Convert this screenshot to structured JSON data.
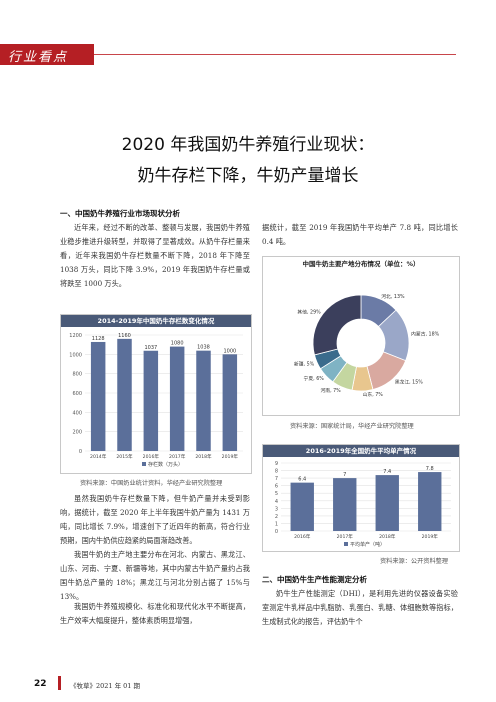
{
  "header": {
    "tag": "行业看点"
  },
  "article": {
    "title_line1": "2020 年我国奶牛养殖行业现状：",
    "title_line2": "奶牛存栏下降，牛奶产量增长",
    "section1_heading": "一、中国奶牛养殖行业市场现状分析",
    "para1": "近年来，经过不断的改革、整顿与发展，我国奶牛养殖业稳步推进升级转型，并取得了显著成效。从奶牛存栏量来看，近年来我国奶牛存栏数量不断下降，2018 年下降至 1038 万头，同比下降 3.9%，2019 年我国奶牛存栏量或将跌至 1000 万头。",
    "para2": "虽然我国奶牛存栏数量下降，但牛奶产量并未受到影响，据统计，截至 2020 年上半年我国牛奶产量为 1431 万吨，同比增长 7.9%，增速创下了近四年的新高，符合行业预期，国内牛奶供应趋紧的局面渐趋改善。",
    "para3": "我国牛奶的主产地主要分布在河北、内蒙古、黑龙江、山东、河南、宁夏、新疆等地，其中内蒙古牛奶产量约占我国牛奶总产量的 18%；黑龙江与河北分别占据了 15%与 13%。",
    "para4": "我国奶牛养殖规模化、标准化和现代化水平不断提高，生产效率大幅度提升，整体素质明显增强，",
    "para5": "据统计，截至 2019 年我国奶牛平均单产 7.8 吨，同比增长 0.4 吨。",
    "section2_heading": "二、中国奶牛生产性能测定分析",
    "para6": "奶牛生产性能测定（DHI），是利用先进的仪器设备实验室测定牛乳样品中乳脂肪、乳蛋白、乳糖、体细胞数等指标，生成制式化的报告，评估奶牛个"
  },
  "captions": {
    "chart1": "资料来源：中国奶业统计资料，华经产业研究院整理",
    "chart2": "资料来源：国家统计局，华经产业研究院整理",
    "chart3": "资料来源：公开资料整理"
  },
  "footer": {
    "page_number": "22",
    "issue": "《牧草》2021 年 01 期"
  },
  "chart_data": [
    {
      "type": "bar",
      "title": "2014-2019年中国奶牛存栏数变化情况",
      "categories": [
        "2014年",
        "2015年",
        "2016年",
        "2017年",
        "2018年",
        "2019年"
      ],
      "series": [
        {
          "name": "存栏数（万头）",
          "values": [
            1128,
            1160,
            1037,
            1080,
            1038,
            1000
          ]
        }
      ],
      "ylim": [
        0,
        1200
      ],
      "yticks": [
        "0",
        "200",
        "400",
        "600",
        "800",
        "1000",
        "1200"
      ],
      "color": "#5b6f9a",
      "grid": true,
      "legend": "bottom"
    },
    {
      "type": "pie",
      "title": "中国牛奶主要产地分布情况（单位：%）",
      "labels": [
        "河北",
        "内蒙古",
        "黑龙江",
        "山东",
        "河南",
        "宁夏",
        "新疆",
        "其他"
      ],
      "values": [
        13,
        18,
        15,
        7,
        7,
        6,
        5,
        29
      ],
      "display": [
        "河北, 13%",
        "内蒙古, 18%",
        "黑龙江, 15%",
        "山东, 7%",
        "河南, 7%",
        "宁夏, 6%",
        "新疆, 5%",
        "其他, 29%"
      ],
      "colors": [
        "#6b7ba6",
        "#9aa7c8",
        "#d9a9a0",
        "#e8c68e",
        "#c4d6a0",
        "#7fb3c4",
        "#3a6b8c",
        "#3b3f5c"
      ],
      "donut": true
    },
    {
      "type": "bar",
      "title": "2016-2019年全国奶牛平均单产情况",
      "categories": [
        "2016年",
        "2017年",
        "2018年",
        "2019年"
      ],
      "series": [
        {
          "name": "平均单产（吨）",
          "values": [
            6.4,
            7,
            7.4,
            7.8
          ]
        }
      ],
      "ylim": [
        0,
        9
      ],
      "yticks": [
        "0",
        "1",
        "2",
        "3",
        "4",
        "5",
        "6",
        "7",
        "8",
        "9"
      ],
      "color": "#5b6f9a",
      "grid": true,
      "legend": "bottom"
    }
  ]
}
